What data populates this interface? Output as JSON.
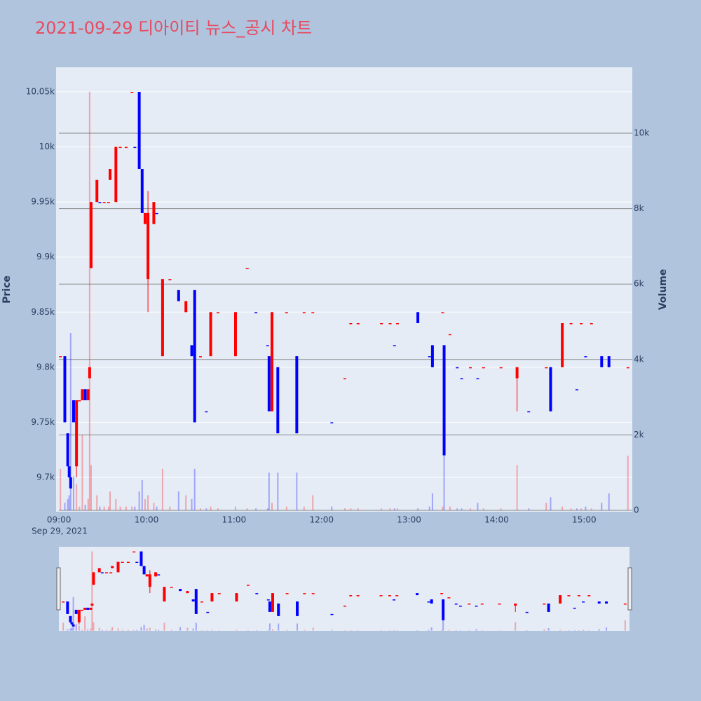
{
  "chart_data": {
    "type": "candlestick",
    "title": "2021-09-29 디아이티 뉴스_공시 차트",
    "title_color": "#e84a5f",
    "ylabel": "Price",
    "y2label": "Volume",
    "x_date_label": "Sep 29, 2021",
    "increasing_color": "#ff0000",
    "decreasing_color": "#0000ff",
    "grid": true,
    "rangeslider": true,
    "x": [
      "2021-09-29 09:01",
      "2021-09-29 09:04",
      "2021-09-29 09:06",
      "2021-09-29 09:07",
      "2021-09-29 09:08",
      "2021-09-29 09:10",
      "2021-09-29 09:12",
      "2021-09-29 09:14",
      "2021-09-29 09:16",
      "2021-09-29 09:18",
      "2021-09-29 09:20",
      "2021-09-29 09:21",
      "2021-09-29 09:22",
      "2021-09-29 09:26",
      "2021-09-29 09:28",
      "2021-09-29 09:31",
      "2021-09-29 09:34",
      "2021-09-29 09:35",
      "2021-09-29 09:39",
      "2021-09-29 09:42",
      "2021-09-29 09:46",
      "2021-09-29 09:50",
      "2021-09-29 09:52",
      "2021-09-29 09:55",
      "2021-09-29 09:57",
      "2021-09-29 09:59",
      "2021-09-29 10:01",
      "2021-09-29 10:05",
      "2021-09-29 10:07",
      "2021-09-29 10:11",
      "2021-09-29 10:16",
      "2021-09-29 10:22",
      "2021-09-29 10:27",
      "2021-09-29 10:31",
      "2021-09-29 10:33",
      "2021-09-29 10:37",
      "2021-09-29 10:41",
      "2021-09-29 10:44",
      "2021-09-29 10:49",
      "2021-09-29 11:01",
      "2021-09-29 11:09",
      "2021-09-29 11:15",
      "2021-09-29 11:23",
      "2021-09-29 11:24",
      "2021-09-29 11:26",
      "2021-09-29 11:30",
      "2021-09-29 11:36",
      "2021-09-29 11:43",
      "2021-09-29 11:48",
      "2021-09-29 11:54",
      "2021-09-29 12:07",
      "2021-09-29 12:16",
      "2021-09-29 12:20",
      "2021-09-29 12:25",
      "2021-09-29 12:41",
      "2021-09-29 12:47",
      "2021-09-29 12:50",
      "2021-09-29 12:52",
      "2021-09-29 13:06",
      "2021-09-29 13:14",
      "2021-09-29 13:16",
      "2021-09-29 13:23",
      "2021-09-29 13:24",
      "2021-09-29 13:28",
      "2021-09-29 13:33",
      "2021-09-29 13:36",
      "2021-09-29 13:42",
      "2021-09-29 13:47",
      "2021-09-29 13:51",
      "2021-09-29 14:03",
      "2021-09-29 14:14",
      "2021-09-29 14:22",
      "2021-09-29 14:34",
      "2021-09-29 14:37",
      "2021-09-29 14:45",
      "2021-09-29 14:51",
      "2021-09-29 14:55",
      "2021-09-29 14:58",
      "2021-09-29 15:01",
      "2021-09-29 15:05",
      "2021-09-29 15:12",
      "2021-09-29 15:17",
      "2021-09-29 15:30"
    ],
    "open": [
      9810,
      9810,
      9740,
      9710,
      9700,
      9770,
      9710,
      9770,
      9770,
      9780,
      9770,
      9790,
      9890,
      9950,
      9950,
      9950,
      9950,
      9970,
      9950,
      10000,
      10000,
      10050,
      10000,
      10050,
      9980,
      9930,
      9880,
      9930,
      9940,
      9810,
      9880,
      9870,
      9850,
      9820,
      9870,
      9810,
      9760,
      9810,
      9850,
      9810,
      9890,
      9850,
      9820,
      9810,
      9760,
      9800,
      9850,
      9810,
      9850,
      9850,
      9750,
      9790,
      9840,
      9840,
      9840,
      9840,
      9820,
      9840,
      9850,
      9810,
      9820,
      9850,
      9820,
      9830,
      9800,
      9790,
      9800,
      9790,
      9800,
      9800,
      9790,
      9760,
      9800,
      9800,
      9800,
      9840,
      9780,
      9840,
      9810,
      9840,
      9810,
      9810,
      9800
    ],
    "high": [
      9810,
      9810,
      9740,
      9710,
      9700,
      9770,
      9770,
      9770,
      9780,
      9780,
      9780,
      9800,
      9950,
      9970,
      9950,
      9950,
      9950,
      9980,
      10000,
      10000,
      10000,
      10050,
      10000,
      10050,
      9980,
      9940,
      9960,
      9950,
      9940,
      9880,
      9880,
      9870,
      9860,
      9820,
      9870,
      9810,
      9760,
      9850,
      9850,
      9850,
      9890,
      9850,
      9820,
      9810,
      9850,
      9800,
      9850,
      9810,
      9850,
      9850,
      9750,
      9790,
      9840,
      9840,
      9840,
      9840,
      9820,
      9840,
      9850,
      9810,
      9820,
      9850,
      9820,
      9830,
      9800,
      9790,
      9800,
      9790,
      9800,
      9800,
      9800,
      9760,
      9800,
      9800,
      9840,
      9840,
      9780,
      9840,
      9810,
      9840,
      9810,
      9810,
      9800
    ],
    "low": [
      9810,
      9750,
      9710,
      9700,
      9690,
      9750,
      9700,
      9770,
      9770,
      9770,
      9770,
      9790,
      9890,
      9950,
      9950,
      9950,
      9950,
      9970,
      9950,
      10000,
      10000,
      10050,
      10000,
      9980,
      9940,
      9930,
      9850,
      9930,
      9940,
      9810,
      9880,
      9860,
      9850,
      9810,
      9750,
      9810,
      9760,
      9810,
      9850,
      9810,
      9890,
      9850,
      9820,
      9760,
      9760,
      9740,
      9850,
      9740,
      9850,
      9850,
      9750,
      9790,
      9840,
      9840,
      9840,
      9840,
      9820,
      9840,
      9840,
      9810,
      9800,
      9850,
      9720,
      9830,
      9800,
      9790,
      9800,
      9790,
      9800,
      9800,
      9760,
      9760,
      9800,
      9760,
      9800,
      9840,
      9780,
      9840,
      9810,
      9840,
      9800,
      9800,
      9800
    ],
    "close": [
      9810,
      9750,
      9710,
      9700,
      9690,
      9750,
      9770,
      9770,
      9780,
      9770,
      9780,
      9800,
      9950,
      9970,
      9950,
      9950,
      9950,
      9980,
      10000,
      10000,
      10000,
      10050,
      10000,
      9980,
      9940,
      9940,
      9940,
      9950,
      9940,
      9880,
      9880,
      9860,
      9860,
      9810,
      9750,
      9810,
      9760,
      9850,
      9850,
      9850,
      9890,
      9850,
      9820,
      9760,
      9850,
      9740,
      9850,
      9740,
      9850,
      9850,
      9750,
      9790,
      9840,
      9840,
      9840,
      9840,
      9820,
      9840,
      9840,
      9810,
      9800,
      9850,
      9720,
      9830,
      9800,
      9790,
      9800,
      9790,
      9800,
      9800,
      9800,
      9760,
      9800,
      9760,
      9840,
      9840,
      9780,
      9840,
      9810,
      9840,
      9800,
      9800,
      9800
    ],
    "volume": [
      1100,
      200,
      300,
      400,
      4700,
      900,
      700,
      100,
      2000,
      150,
      300,
      11100,
      1200,
      400,
      100,
      100,
      100,
      500,
      300,
      100,
      100,
      100,
      100,
      500,
      800,
      300,
      400,
      200,
      100,
      1100,
      100,
      500,
      400,
      300,
      1100,
      50,
      50,
      100,
      50,
      100,
      50,
      50,
      50,
      1000,
      200,
      1000,
      100,
      1000,
      100,
      400,
      100,
      50,
      50,
      50,
      50,
      50,
      50,
      50,
      50,
      100,
      450,
      100,
      3500,
      100,
      50,
      50,
      50,
      200,
      50,
      50,
      1200,
      50,
      200,
      350,
      100,
      50,
      50,
      50,
      100,
      50,
      200,
      450,
      1450
    ],
    "xlim": [
      "2021-09-29 08:58",
      "2021-09-29 15:33"
    ],
    "xticks": [
      {
        "value": "2021-09-29 09:00",
        "label": "09:00"
      },
      {
        "value": "2021-09-29 10:00",
        "label": "10:00"
      },
      {
        "value": "2021-09-29 11:00",
        "label": "11:00"
      },
      {
        "value": "2021-09-29 12:00",
        "label": "12:00"
      },
      {
        "value": "2021-09-29 13:00",
        "label": "13:00"
      },
      {
        "value": "2021-09-29 14:00",
        "label": "14:00"
      },
      {
        "value": "2021-09-29 15:00",
        "label": "15:00"
      }
    ],
    "ylim": [
      9668.8,
      10072.3
    ],
    "yticks": [
      {
        "value": 9700,
        "label": "9.7k"
      },
      {
        "value": 9750,
        "label": "9.75k"
      },
      {
        "value": 9800,
        "label": "9.8k"
      },
      {
        "value": 9850,
        "label": "9.85k"
      },
      {
        "value": 9900,
        "label": "9.9k"
      },
      {
        "value": 9950,
        "label": "9.95k"
      },
      {
        "value": 10000,
        "label": "10k"
      },
      {
        "value": 10050,
        "label": "10.05k"
      }
    ],
    "y2lim": [
      -37,
      11747
    ],
    "y2ticks": [
      0,
      {
        "value": 2000,
        "label": "2k"
      },
      {
        "value": 4000,
        "label": "4k"
      },
      {
        "value": 6000,
        "label": "6k"
      },
      {
        "value": 8000,
        "label": "8k"
      },
      {
        "value": 10000,
        "label": "10k"
      }
    ]
  }
}
